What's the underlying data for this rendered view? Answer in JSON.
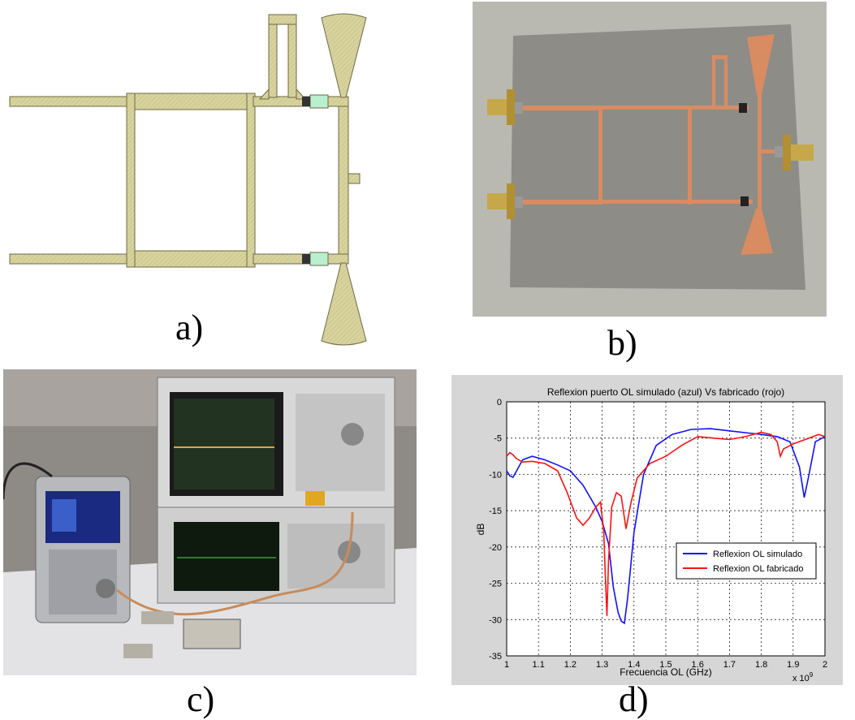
{
  "captions": {
    "a": "a)",
    "b": "b)",
    "c": "c)",
    "d": "d)"
  },
  "colors": {
    "trace": "#d8d39c",
    "trace_stroke": "#6b6a45",
    "pad": "#b9eecf",
    "board": "#8d8c87",
    "copper": "#d98b62",
    "simulated": "#1010ff",
    "fabricated": "#ff1010",
    "chart_bg": "#d6d6d6"
  },
  "chart_data": {
    "type": "line",
    "title": "Reflexion puerto OL simulado (azul) Vs fabricado (rojo)",
    "xlabel": "Frecuencia OL (GHz)",
    "ylabel": "dB",
    "x_multiplier": "x 10",
    "x_multiplier_exp": "9",
    "xlim": [
      1.0,
      2.0
    ],
    "ylim": [
      -35,
      0
    ],
    "xticks": [
      1,
      1.1,
      1.2,
      1.3,
      1.4,
      1.5,
      1.6,
      1.7,
      1.8,
      1.9,
      2
    ],
    "yticks": [
      0,
      -5,
      -10,
      -15,
      -20,
      -25,
      -30,
      -35
    ],
    "grid": true,
    "legend_position": "center-right",
    "series": [
      {
        "name": "Reflexion OL simulado",
        "color": "#1010ff",
        "x": [
          1.0,
          1.01,
          1.02,
          1.03,
          1.05,
          1.08,
          1.12,
          1.16,
          1.2,
          1.24,
          1.28,
          1.3,
          1.32,
          1.335,
          1.35,
          1.36,
          1.37,
          1.38,
          1.4,
          1.43,
          1.47,
          1.52,
          1.58,
          1.64,
          1.7,
          1.76,
          1.8,
          1.85,
          1.89,
          1.92,
          1.935,
          1.95,
          1.97,
          2.0
        ],
        "y": [
          -9.5,
          -10.2,
          -10.4,
          -9.6,
          -8.0,
          -7.5,
          -8.0,
          -8.7,
          -9.5,
          -11.5,
          -14.5,
          -16.5,
          -19.5,
          -25.5,
          -29.0,
          -30.2,
          -30.5,
          -27.0,
          -18.0,
          -10.0,
          -6.0,
          -4.5,
          -3.8,
          -3.7,
          -4.0,
          -4.3,
          -4.5,
          -4.8,
          -5.5,
          -9.0,
          -13.2,
          -10.0,
          -5.5,
          -4.8
        ]
      },
      {
        "name": "Reflexion OL fabricado",
        "color": "#ff1010",
        "x": [
          1.0,
          1.01,
          1.02,
          1.03,
          1.05,
          1.08,
          1.12,
          1.16,
          1.19,
          1.22,
          1.24,
          1.26,
          1.28,
          1.295,
          1.305,
          1.31,
          1.315,
          1.32,
          1.33,
          1.345,
          1.36,
          1.375,
          1.39,
          1.41,
          1.45,
          1.5,
          1.55,
          1.6,
          1.65,
          1.7,
          1.75,
          1.8,
          1.83,
          1.85,
          1.86,
          1.87,
          1.9,
          1.95,
          1.98,
          2.0
        ],
        "y": [
          -7.5,
          -7.0,
          -7.3,
          -7.8,
          -8.3,
          -8.2,
          -8.5,
          -9.5,
          -12.5,
          -16.0,
          -17.0,
          -16.0,
          -14.5,
          -13.8,
          -18.0,
          -24.0,
          -29.5,
          -22.0,
          -14.5,
          -12.5,
          -13.0,
          -17.5,
          -14.0,
          -10.5,
          -8.5,
          -7.5,
          -6.0,
          -4.8,
          -5.0,
          -5.2,
          -4.8,
          -4.2,
          -4.5,
          -5.5,
          -7.5,
          -6.5,
          -5.8,
          -5.0,
          -4.5,
          -4.8
        ]
      }
    ]
  }
}
